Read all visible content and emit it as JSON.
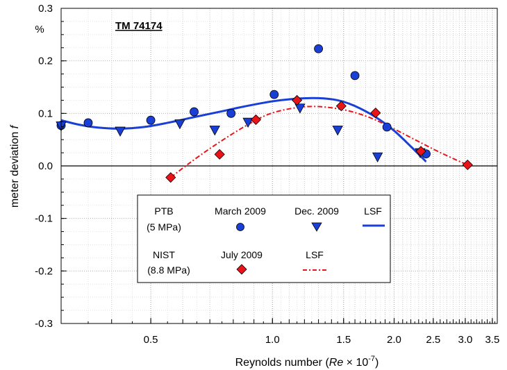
{
  "chart_data": {
    "type": "scatter",
    "tag": "TM 74174",
    "xlabel_pre": "Reynolds number (",
    "xlabel_var": "Re",
    "xlabel_mid": " × 10",
    "xlabel_exp": "-7",
    "xlabel_post": ")",
    "ylabel_text": "meter deviation ",
    "ylabel_var": "f",
    "y_unit": "%",
    "x_scale": "log",
    "xlim": [
      0.3,
      3.6
    ],
    "ylim": [
      -0.3,
      0.3
    ],
    "x_ticks": [
      {
        "value": 0.5,
        "label": "0.5"
      },
      {
        "value": 1.0,
        "label": "1.0"
      },
      {
        "value": 1.5,
        "label": "1.5"
      },
      {
        "value": 2.0,
        "label": "2.0"
      },
      {
        "value": 2.5,
        "label": "2.5"
      },
      {
        "value": 3.0,
        "label": "3.0"
      },
      {
        "value": 3.5,
        "label": "3.5"
      }
    ],
    "y_ticks": [
      {
        "value": -0.3,
        "label": "-0.3"
      },
      {
        "value": -0.2,
        "label": "-0.2"
      },
      {
        "value": -0.1,
        "label": "-0.1"
      },
      {
        "value": 0.0,
        "label": "0.0"
      },
      {
        "value": 0.1,
        "label": "0.1"
      },
      {
        "value": 0.2,
        "label": "0.2"
      },
      {
        "value": 0.3,
        "label": "0.3"
      }
    ],
    "grid": true,
    "series": [
      {
        "name": "March 2009",
        "marker": "circle",
        "color": "#1a3fd6",
        "points": [
          [
            0.3,
            0.077
          ],
          [
            0.35,
            0.082
          ],
          [
            0.5,
            0.087
          ],
          [
            0.64,
            0.103
          ],
          [
            0.79,
            0.1
          ],
          [
            1.01,
            0.136
          ],
          [
            1.3,
            0.223
          ],
          [
            1.6,
            0.172
          ],
          [
            1.92,
            0.074
          ],
          [
            2.4,
            0.023
          ]
        ]
      },
      {
        "name": "Dec. 2009",
        "marker": "triangle-down",
        "color": "#1a3fd6",
        "points": [
          [
            0.3,
            0.076
          ],
          [
            0.42,
            0.066
          ],
          [
            0.59,
            0.08
          ],
          [
            0.72,
            0.068
          ],
          [
            0.87,
            0.083
          ],
          [
            1.17,
            0.11
          ],
          [
            1.45,
            0.068
          ],
          [
            1.82,
            0.017
          ],
          [
            2.32,
            0.025
          ]
        ]
      },
      {
        "name": "July 2009",
        "marker": "diamond",
        "color": "#e8141a",
        "points": [
          [
            0.56,
            -0.022
          ],
          [
            0.74,
            0.022
          ],
          [
            0.91,
            0.088
          ],
          [
            1.15,
            0.125
          ],
          [
            1.48,
            0.114
          ],
          [
            1.8,
            0.101
          ],
          [
            2.33,
            0.028
          ],
          [
            3.04,
            0.002
          ]
        ]
      }
    ],
    "fits": [
      {
        "name": "LSF",
        "style": "solid",
        "color": "#1a3fd6",
        "points": [
          [
            0.3,
            0.087
          ],
          [
            0.33,
            0.079
          ],
          [
            0.37,
            0.073
          ],
          [
            0.42,
            0.071
          ],
          [
            0.48,
            0.074
          ],
          [
            0.55,
            0.082
          ],
          [
            0.65,
            0.094
          ],
          [
            0.75,
            0.104
          ],
          [
            0.85,
            0.113
          ],
          [
            1.0,
            0.123
          ],
          [
            1.15,
            0.128
          ],
          [
            1.3,
            0.129
          ],
          [
            1.45,
            0.125
          ],
          [
            1.6,
            0.114
          ],
          [
            1.8,
            0.093
          ],
          [
            2.0,
            0.067
          ],
          [
            2.2,
            0.037
          ],
          [
            2.4,
            0.008
          ]
        ]
      },
      {
        "name": "LSF",
        "style": "dash-dot",
        "color": "#e8141a",
        "points": [
          [
            0.56,
            -0.022
          ],
          [
            0.62,
            0.004
          ],
          [
            0.7,
            0.033
          ],
          [
            0.8,
            0.062
          ],
          [
            0.9,
            0.085
          ],
          [
            1.0,
            0.101
          ],
          [
            1.15,
            0.111
          ],
          [
            1.3,
            0.113
          ],
          [
            1.5,
            0.107
          ],
          [
            1.7,
            0.095
          ],
          [
            1.9,
            0.079
          ],
          [
            2.2,
            0.054
          ],
          [
            2.5,
            0.032
          ],
          [
            2.8,
            0.014
          ],
          [
            3.04,
            0.002
          ]
        ]
      }
    ],
    "legend": {
      "rows": [
        {
          "group": "PTB",
          "group_sub": "(5 MPa)",
          "entries": [
            {
              "label": "March 2009",
              "marker": "circle"
            },
            {
              "label": "Dec. 2009",
              "marker": "triangle-down"
            },
            {
              "label": "LSF",
              "marker": "solid-line"
            }
          ]
        },
        {
          "group": "NIST",
          "group_sub": "(8.8 MPa)",
          "entries": [
            {
              "label": "July 2009",
              "marker": "diamond"
            },
            {
              "label": "LSF",
              "marker": "dash-dot-line"
            }
          ]
        }
      ]
    }
  }
}
